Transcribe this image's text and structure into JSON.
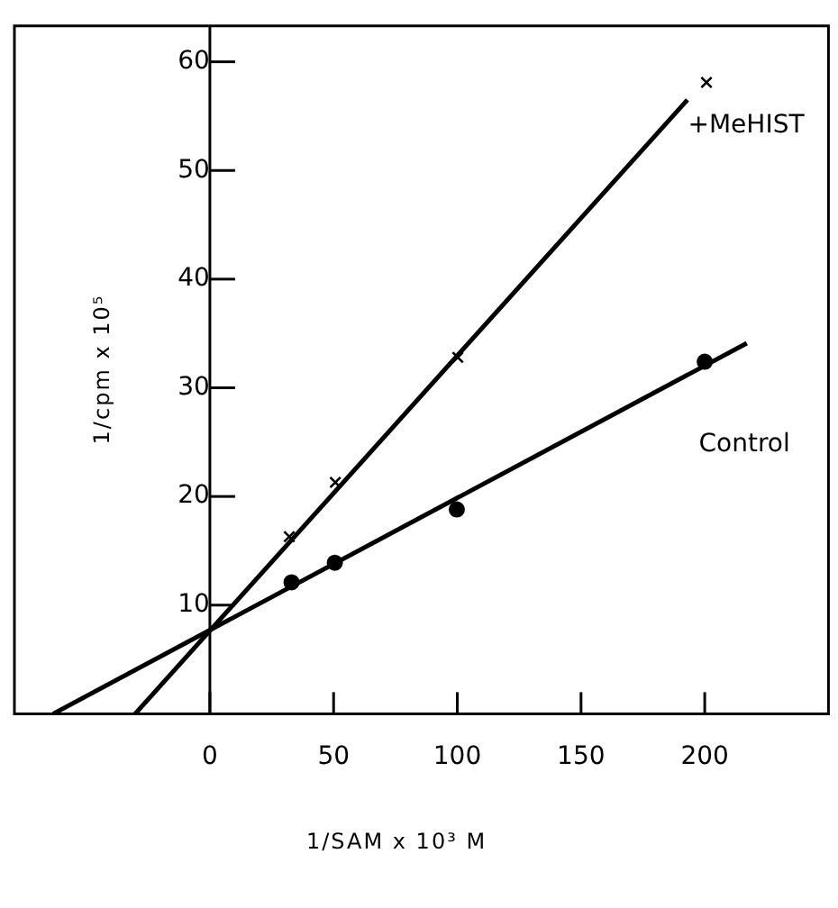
{
  "chart_data": {
    "type": "scatter",
    "xlabel": "1/SAM x 10³ M",
    "ylabel": "1/cpm x 10⁵",
    "xlim": [
      -79,
      250
    ],
    "ylim": [
      0,
      63.3
    ],
    "xticks": [
      0,
      50,
      100,
      150,
      200
    ],
    "yticks": [
      10,
      20,
      30,
      40,
      50,
      60
    ],
    "grid": false,
    "legend": false,
    "series": [
      {
        "name": "+MeHIST",
        "color": "#000000",
        "marker": "cross",
        "x": [
          32.1,
          50.7,
          100.2,
          200.7
        ],
        "values": [
          16.3,
          21.3,
          32.8,
          58.1
        ]
      },
      {
        "name": "Control",
        "color": "#000000",
        "marker": "circle",
        "x": [
          33,
          50.5,
          99.8,
          200
        ],
        "values": [
          12.1,
          13.9,
          18.8,
          32.4
        ]
      },
      {
        "type": "line",
        "color": "#000000",
        "marker": "none",
        "x": [
          -30.2,
          193
        ],
        "values": [
          0,
          56.5
        ]
      },
      {
        "type": "line",
        "color": "#000000",
        "marker": "none",
        "x": [
          -63.3,
          217
        ],
        "values": [
          0,
          34.1
        ]
      }
    ]
  }
}
